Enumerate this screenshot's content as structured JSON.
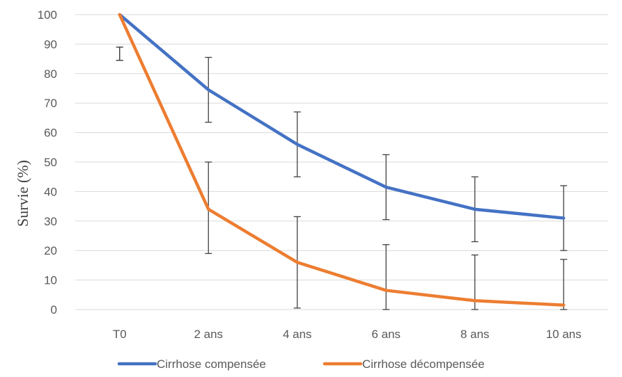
{
  "chart_data": {
    "type": "line",
    "title": "",
    "xlabel": "",
    "ylabel": "Survie (%)",
    "categories": [
      "T0",
      "2 ans",
      "4 ans",
      "6 ans",
      "8 ans",
      "10 ans"
    ],
    "ylim": [
      0,
      100
    ],
    "yticks": [
      0,
      10,
      20,
      30,
      40,
      50,
      60,
      70,
      80,
      90,
      100
    ],
    "grid": true,
    "legend_position": "bottom",
    "series": [
      {
        "name": "Cirrhose compensée",
        "color": "#4472C4",
        "values": [
          100,
          74.5,
          56,
          41.5,
          34,
          31
        ],
        "error_low": [
          84.5,
          63.5,
          45,
          30.5,
          23,
          20
        ],
        "error_high": [
          89,
          85.5,
          67,
          52.5,
          45,
          42
        ]
      },
      {
        "name": "Cirrhose décompensée",
        "color": "#ED7D31",
        "values": [
          100,
          34,
          16,
          6.5,
          3,
          1.5
        ],
        "error_low": [
          84.5,
          19,
          0.5,
          0,
          0,
          0
        ],
        "error_high": [
          89,
          50,
          31.5,
          22,
          18.5,
          17
        ]
      }
    ]
  }
}
